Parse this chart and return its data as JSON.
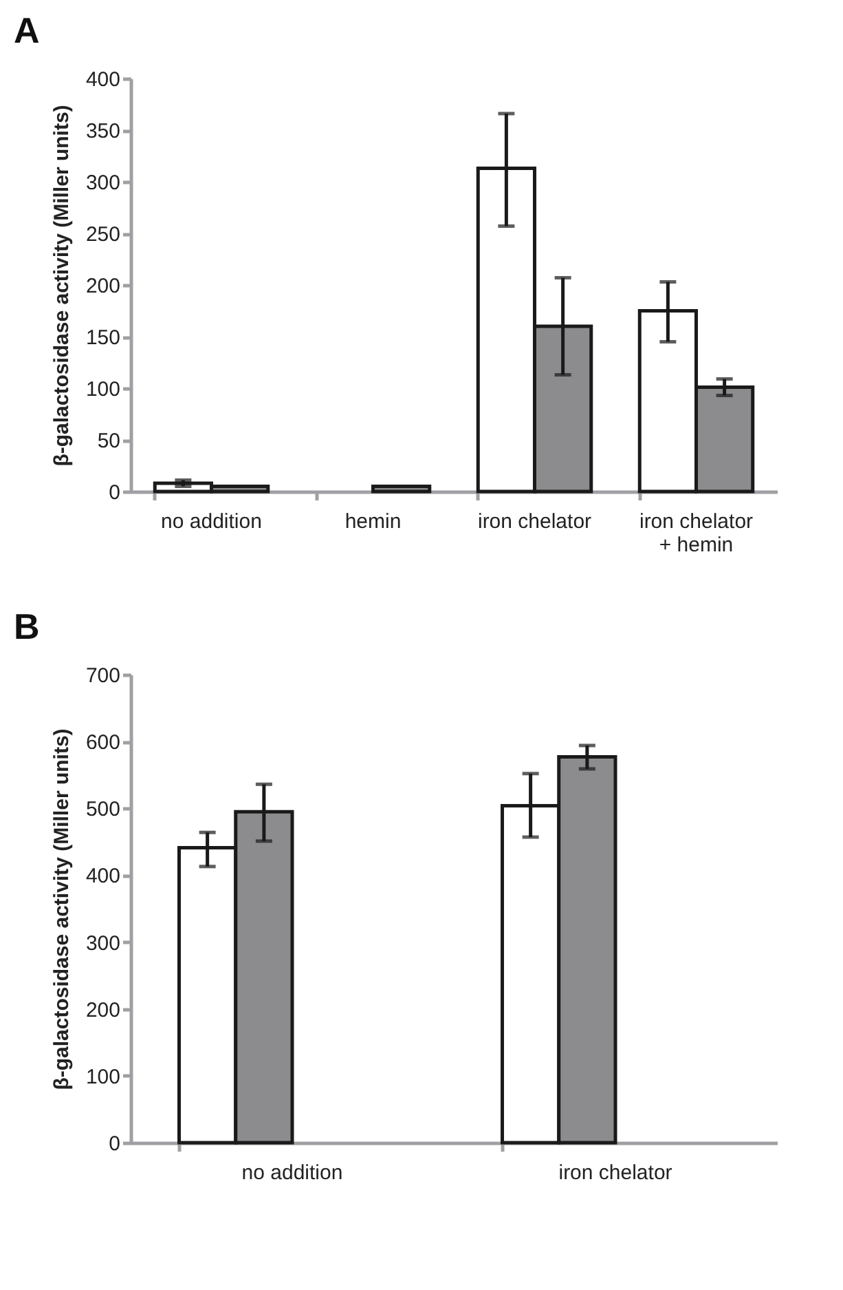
{
  "chart_data": [
    {
      "type": "bar",
      "title": "A",
      "ylabel": "β-galactosidase activity (Miller units)",
      "categories": [
        "no addition",
        "hemin",
        "iron chelator",
        "iron chelator + hemin"
      ],
      "series": [
        {
          "color": "#ffffff",
          "values": [
            8,
            null,
            313,
            175
          ],
          "errors": [
            3,
            null,
            [
              257,
              366
            ],
            [
              145,
              203
            ]
          ]
        },
        {
          "color": "#8c8c8e",
          "values": [
            5,
            5,
            160,
            101
          ],
          "errors": [
            null,
            null,
            [
              113,
              207
            ],
            [
              93,
              109
            ]
          ]
        }
      ],
      "ylim": [
        0,
        400
      ],
      "yticks": [
        0,
        50,
        100,
        150,
        200,
        250,
        300,
        350,
        400
      ],
      "grid": false,
      "legend": false
    },
    {
      "type": "bar",
      "title": "B",
      "ylabel": "β-galactosidase activity (Miller units)",
      "categories": [
        "no addition",
        "iron chelator"
      ],
      "series": [
        {
          "color": "#ffffff",
          "values": [
            441,
            504
          ],
          "errors": [
            [
              413,
              464
            ],
            [
              457,
              552
            ]
          ]
        },
        {
          "color": "#8c8c8e",
          "values": [
            495,
            577
          ],
          "errors": [
            [
              451,
              536
            ],
            [
              559,
              594
            ]
          ]
        }
      ],
      "ylim": [
        0,
        700
      ],
      "yticks": [
        0,
        100,
        200,
        300,
        400,
        500,
        600,
        700
      ],
      "grid": false,
      "legend": false
    }
  ]
}
